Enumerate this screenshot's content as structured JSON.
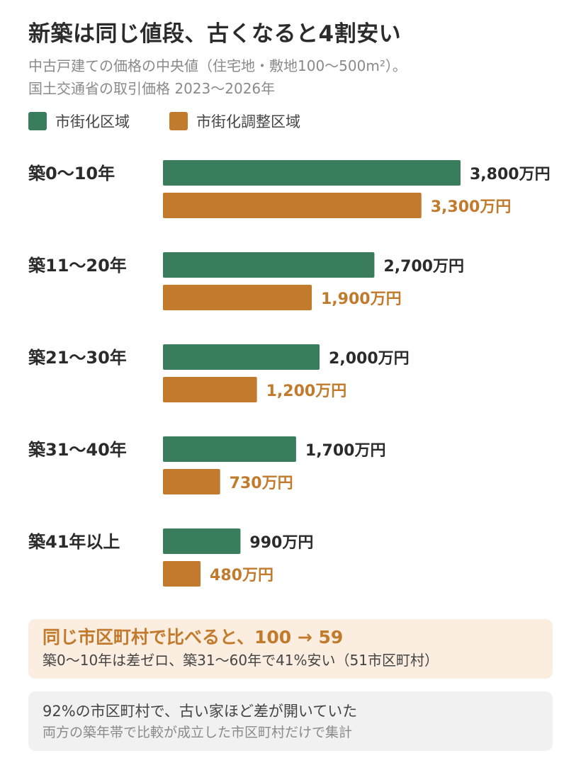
{
  "colors": {
    "urban": "#397d5c",
    "control": "#c27a2c",
    "text": "#2b2b2b",
    "muted": "#8a8a8a"
  },
  "chart_data": {
    "type": "bar",
    "orientation": "horizontal",
    "title": "新築は同じ値段、古くなると4割安い",
    "subtitle_lines": [
      "中古戸建ての価格の中央値（住宅地・敷地100〜500m²）。",
      "国土交通省の取引価格 2023〜2026年"
    ],
    "legend_placement": "top-left",
    "grid": false,
    "unit": "万円",
    "categories": [
      "築0〜10年",
      "築11〜20年",
      "築21〜30年",
      "築31〜40年",
      "築41年以上"
    ],
    "series": [
      {
        "name": "市街化区域",
        "color": "#397d5c",
        "values": [
          3800,
          2700,
          2000,
          1700,
          990
        ],
        "labels": [
          "3,800万円",
          "2,700万円",
          "2,000万円",
          "1,700万円",
          "990万円"
        ]
      },
      {
        "name": "市街化調整区域",
        "color": "#c27a2c",
        "values": [
          3300,
          1900,
          1200,
          730,
          480
        ],
        "labels": [
          "3,300万円",
          "1,900万円",
          "1,200万円",
          "730万円",
          "480万円"
        ]
      }
    ]
  },
  "notes": {
    "highlight_head": "同じ市区町村で比べると、100 → 59",
    "highlight_sub": "築0〜10年は差ゼロ、築31〜60年で41%安い（51市区町村）",
    "footer_head": "92%の市区町村で、古い家ほど差が開いていた",
    "footer_sub": "両方の築年帯で比較が成立した市区町村だけで集計"
  }
}
